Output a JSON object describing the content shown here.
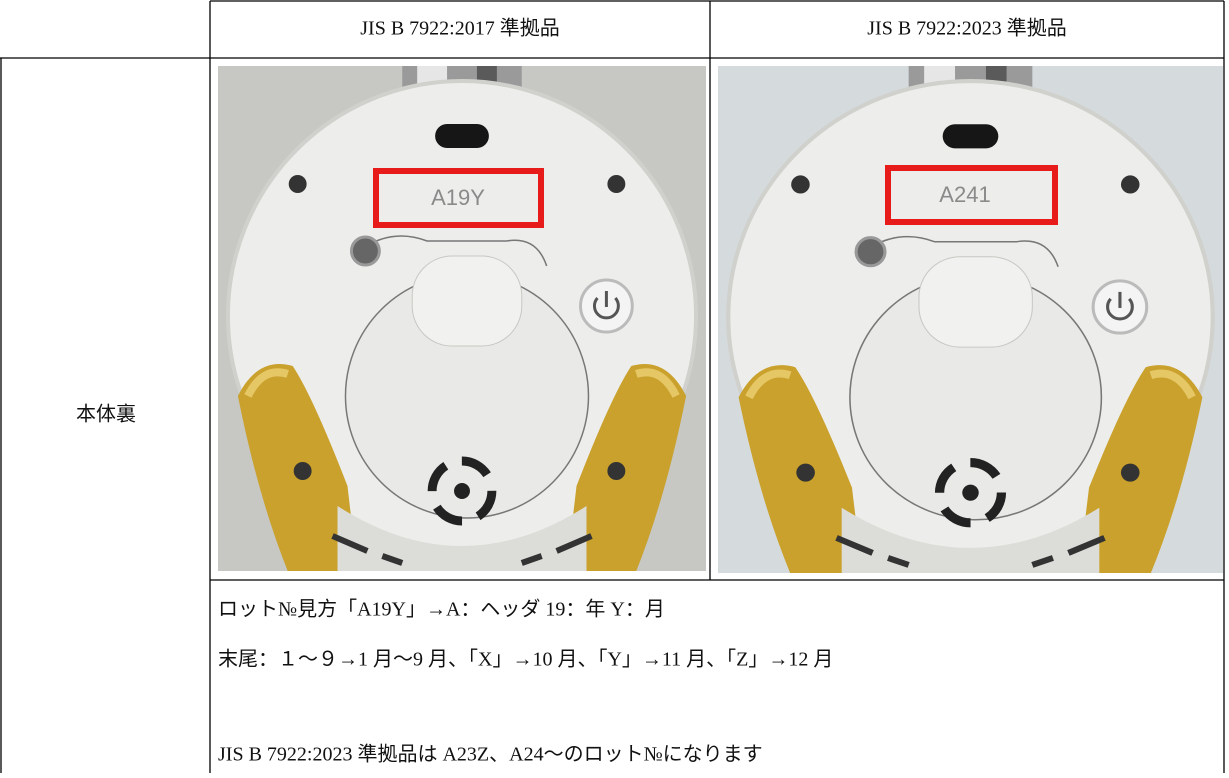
{
  "table": {
    "header": [
      "JIS B 7922:2017 準拠品",
      "JIS B 7922:2023 準拠品"
    ],
    "row_label": "本体裏",
    "images": [
      {
        "code": "A19Y"
      },
      {
        "code": "A241"
      }
    ],
    "notes": [
      "ロット№見方「A19Y」→A：ヘッダ 19：年 Y：月",
      "末尾：１～９→1 月～9 月、「X」→10 月、「Y」→11 月、「Z」→12 月",
      "JIS B 7922:2023 準拠品は A23Z、A24～のロット№になります"
    ]
  }
}
